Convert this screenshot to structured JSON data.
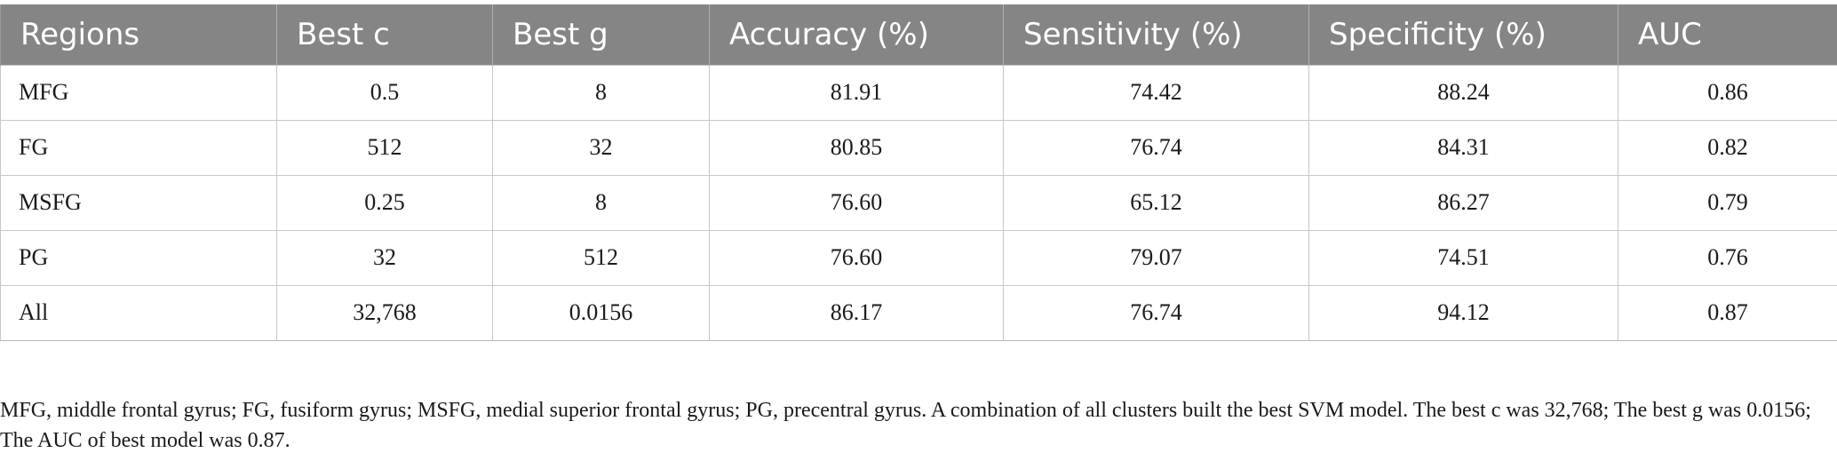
{
  "table": {
    "headers": [
      "Regions",
      "Best c",
      "Best g",
      "Accuracy (%)",
      "Sensitivity (%)",
      "Specificity (%)",
      "AUC"
    ],
    "rows": [
      [
        "MFG",
        "0.5",
        "8",
        "81.91",
        "74.42",
        "88.24",
        "0.86"
      ],
      [
        "FG",
        "512",
        "32",
        "80.85",
        "76.74",
        "84.31",
        "0.82"
      ],
      [
        "MSFG",
        "0.25",
        "8",
        "76.60",
        "65.12",
        "86.27",
        "0.79"
      ],
      [
        "PG",
        "32",
        "512",
        "76.60",
        "79.07",
        "74.51",
        "0.76"
      ],
      [
        "All",
        "32,768",
        "0.0156",
        "86.17",
        "76.74",
        "94.12",
        "0.87"
      ]
    ]
  },
  "footnote": "MFG, middle frontal gyrus; FG, fusiform gyrus; MSFG, medial superior frontal gyrus; PG, precentral gyrus. A combination of all clusters built the best SVM model. The best c was 32,768; The best g was 0.0156; The AUC of best model was 0.87.",
  "colors": {
    "header_background": "#858585",
    "header_text": "#ffffff",
    "grid_lines": "#c8c8c8"
  }
}
